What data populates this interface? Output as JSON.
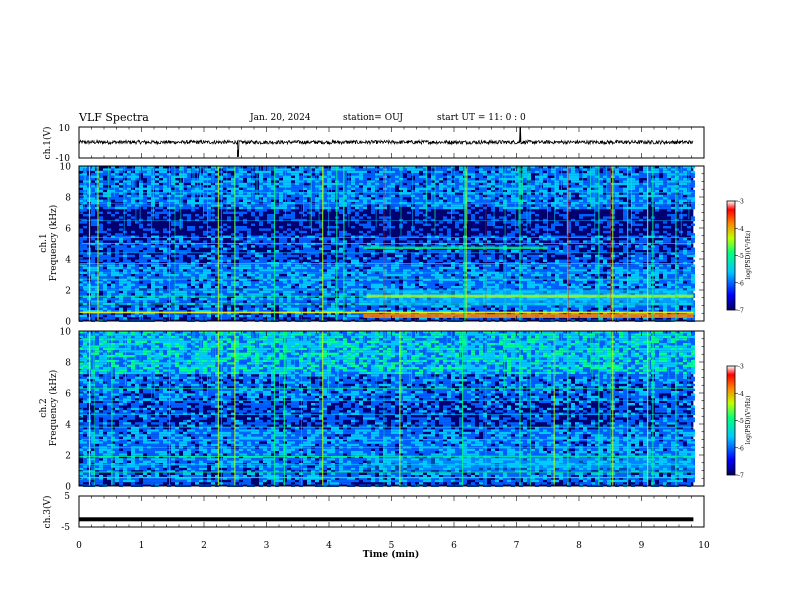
{
  "header": {
    "title": "VLF Spectra",
    "date": "Jan. 20, 2024",
    "station": "station= OUJ",
    "start": "start  UT =  11: 0  : 0"
  },
  "chart_data": [
    {
      "type": "line",
      "title": "VLF Spectra",
      "ylabel": "ch.1(V)",
      "yticks": [
        "10",
        "-10"
      ],
      "ylim": [
        -10,
        10
      ],
      "xlim": [
        0,
        10
      ],
      "description_series": "waveform near 0 V with spikes near t=2.55 and t=7.05 min"
    },
    {
      "type": "heatmap",
      "ylabel": "ch.1\nFrequency (kHz)",
      "ylabel_line1": "ch.1",
      "ylabel_line2": "Frequency (kHz)",
      "yticks": [
        "0",
        "2",
        "4",
        "6",
        "8",
        "10"
      ],
      "ylim": [
        0,
        10
      ],
      "xlim": [
        0,
        10
      ],
      "data_end_min": 9.83,
      "colorbar": {
        "label": "log(PSD)(V²/Hz)",
        "ticks": [
          "-3",
          "-4",
          "-5",
          "-6",
          "-7"
        ],
        "range": [
          -7,
          -3
        ]
      }
    },
    {
      "type": "heatmap",
      "ylabel_line1": "ch.2",
      "ylabel_line2": "Frequency (kHz)",
      "yticks": [
        "0",
        "2",
        "4",
        "6",
        "8",
        "10"
      ],
      "ylim": [
        0,
        10
      ],
      "xlim": [
        0,
        10
      ],
      "data_end_min": 9.83,
      "colorbar": {
        "label": "log(PSD)(V²/Hz)",
        "ticks": [
          "-3",
          "-4",
          "-5",
          "-6",
          "-7"
        ],
        "range": [
          -7,
          -3
        ]
      }
    },
    {
      "type": "line",
      "ylabel": "ch.3(V)",
      "yticks": [
        "5",
        "-5"
      ],
      "ylim": [
        -5,
        5
      ],
      "xlim": [
        0,
        10
      ],
      "constant_value": -2.5
    }
  ],
  "xaxis": {
    "label": "Time (min)",
    "ticks": [
      "0",
      "1",
      "2",
      "3",
      "4",
      "5",
      "6",
      "7",
      "8",
      "9",
      "10"
    ]
  },
  "colors": {
    "background_spec": "#000070",
    "trace": "#000000",
    "colormap": [
      "#000060",
      "#0000ff",
      "#00c8ff",
      "#00ff80",
      "#c0ff00",
      "#ff8000",
      "#ff0000",
      "#ffffff"
    ]
  }
}
